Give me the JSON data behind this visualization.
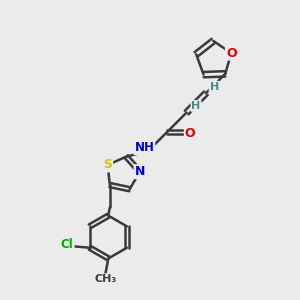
{
  "background_color": "#ebebeb",
  "atom_colors": {
    "C": "#3a3a3a",
    "N": "#0000cc",
    "O": "#dd0000",
    "S": "#cccc00",
    "Cl": "#00aa00",
    "H": "#4a8a8a"
  },
  "bond_color": "#3a3a3a",
  "figsize": [
    3.0,
    3.0
  ],
  "dpi": 100
}
